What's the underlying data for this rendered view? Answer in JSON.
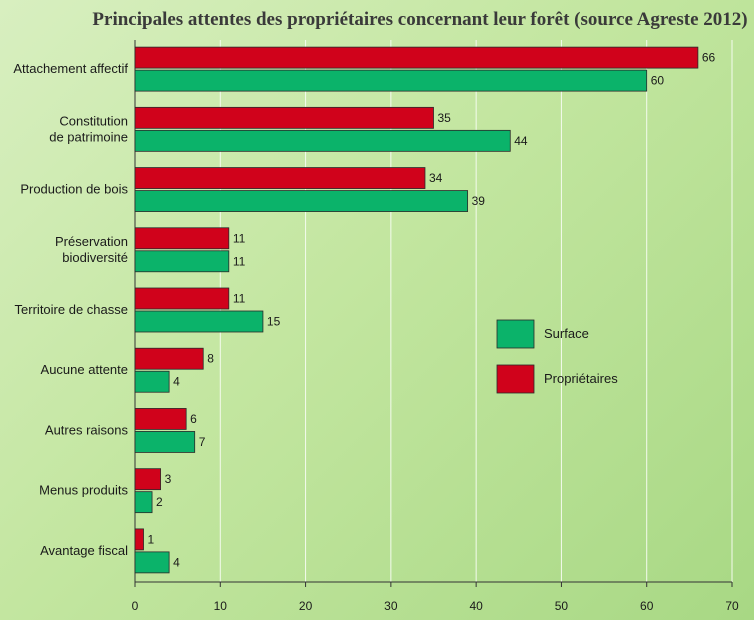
{
  "chart_data": {
    "type": "bar",
    "orientation": "horizontal",
    "title": "Principales attentes des propriétaires concernant leur forêt (source Agreste 2012)",
    "categories": [
      [
        "Attachement affectif"
      ],
      [
        "Constitution",
        "de patrimoine"
      ],
      [
        "Production de bois"
      ],
      [
        "Préservation",
        "biodiversité"
      ],
      [
        "Territoire de chasse"
      ],
      [
        "Aucune attente"
      ],
      [
        "Autres raisons"
      ],
      [
        "Menus produits"
      ],
      [
        "Avantage fiscal"
      ]
    ],
    "series": [
      {
        "name": "Propriétaires",
        "color": "#d0021b",
        "values": [
          66,
          35,
          34,
          11,
          11,
          8,
          6,
          3,
          1
        ]
      },
      {
        "name": "Surface",
        "color": "#0bb36a",
        "values": [
          60,
          44,
          39,
          11,
          15,
          4,
          7,
          2,
          4
        ]
      }
    ],
    "xlim": [
      0,
      70
    ],
    "xticks": [
      0,
      10,
      20,
      30,
      40,
      50,
      60,
      70
    ],
    "grid": true,
    "legend": {
      "position": "right",
      "order": [
        "Surface",
        "Propriétaires"
      ]
    }
  }
}
